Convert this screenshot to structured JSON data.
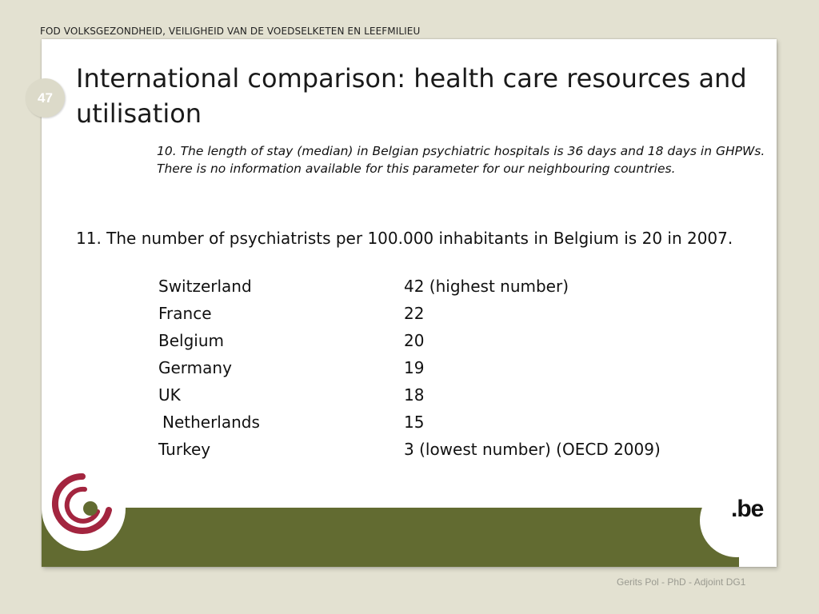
{
  "header": {
    "organization": "FOD VOLKSGEZONDHEID, VEILIGHEID VAN DE VOEDSELKETEN EN LEEFMILIEU"
  },
  "slide": {
    "number": "47",
    "title": "International comparison: health care resources and utilisation",
    "paragraph_10": "10. The length of stay (median) in Belgian psychiatric hospitals is 36 days and 18 days in GHPWs. There is no information available for this parameter for our neighbouring countries.",
    "paragraph_11": "11. The number of psychiatrists per 100.000 inhabitants in Belgium is 20 in 2007.",
    "table": {
      "rows": [
        {
          "country": "Switzerland",
          "value": "42 (highest number)"
        },
        {
          "country": "France",
          "value": "22"
        },
        {
          "country": "Belgium",
          "value": "20"
        },
        {
          "country": "Germany",
          "value": "19"
        },
        {
          "country": "UK",
          "value": "18"
        },
        {
          "country": "Netherlands",
          "value": "15"
        },
        {
          "country": "Turkey",
          "value": "3 (lowest number) (OECD 2009)"
        }
      ]
    }
  },
  "footer": {
    "logo_right": ".be",
    "author": "Gerits Pol - PhD - Adjoint DG1"
  },
  "colors": {
    "background": "#e3e1d1",
    "footer_band": "#626b31",
    "logo_red": "#a3253f",
    "logo_green": "#626b31"
  },
  "icons": {
    "left_logo": "fod-health-logo",
    "right_logo": "be-logo"
  }
}
